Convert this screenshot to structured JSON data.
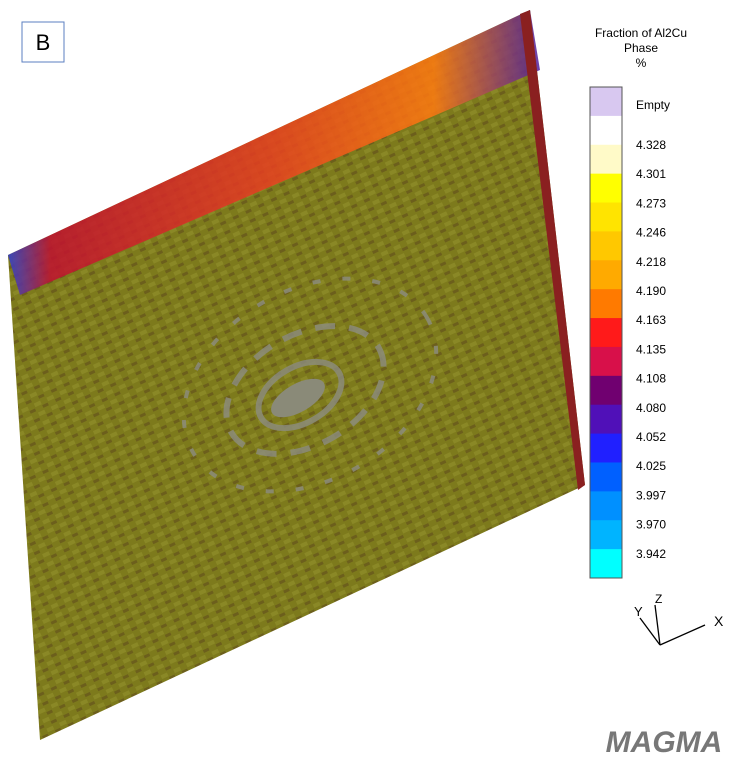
{
  "panel_label": "B",
  "legend": {
    "title": [
      "Fraction of Al2Cu",
      "Phase",
      "%"
    ],
    "labels": [
      "Empty",
      "4.328",
      "4.301",
      "4.273",
      "4.246",
      "4.218",
      "4.190",
      "4.163",
      "4.135",
      "4.108",
      "4.080",
      "4.052",
      "4.025",
      "3.997",
      "3.970",
      "3.942"
    ]
  },
  "axes": {
    "x": "X",
    "y": "Y",
    "z": "Z"
  },
  "logo": "MAGMA"
}
